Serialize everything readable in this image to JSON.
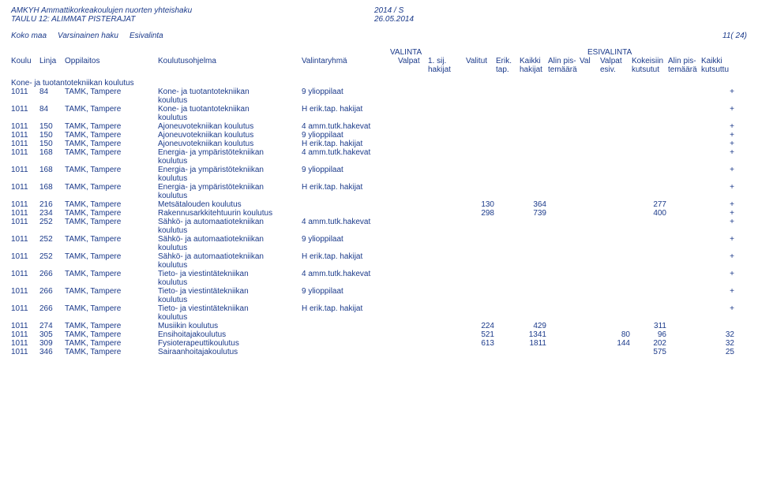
{
  "header": {
    "title1": "AMKYH Ammattikorkeakoulujen nuorten yhteishaku",
    "title2": "TAULU 12: ALIMMAT PISTERAJAT",
    "period": "2014 / S",
    "date": "26.05.2014"
  },
  "bar": {
    "scope": "Koko maa",
    "haku": "Varsinainen haku",
    "phase": "Esivalinta",
    "page": "11( 24)"
  },
  "super_headers": {
    "valinta": "VALINTA",
    "esivalinta": "ESIVALINTA"
  },
  "columns": {
    "koulu": "Koulu",
    "linja": "Linja",
    "oppilaitos": "Oppilaitos",
    "koulutusohjelma": "Koulutusohjelma",
    "valintaryhma": "Valintaryhmä",
    "valpat": "Valpat",
    "sij1": "1. sij.\nhakijat",
    "valitut": "Valitut",
    "erik": "Erik.\ntap.",
    "kaikki_hak": "Kaikki\nhakijat",
    "alinpis_v": "Alin pis-\ntemäärä",
    "val": "Val",
    "valpat_esiv": "Valpat\nesiv.",
    "kokeisiin": "Kokeisiin\nkutsutut",
    "alinpis_e": "Alin pis-\ntemäärä",
    "kaikki_kut": "Kaikki\nkutsuttu"
  },
  "section": "Kone- ja tuotantotekniikan\nkoulutus",
  "rows": [
    {
      "koulu": "1011",
      "linja": "84",
      "opp": "TAMK, Tampere",
      "ohjelma": "Kone- ja tuotantotekniikan\nkoulutus",
      "ryhma": "9 ylioppilaat",
      "plus": "+"
    },
    {
      "koulu": "1011",
      "linja": "84",
      "opp": "TAMK, Tampere",
      "ohjelma": "Kone- ja tuotantotekniikan\nkoulutus",
      "ryhma": "H erik.tap. hakijat",
      "plus": "+"
    },
    {
      "koulu": "1011",
      "linja": "150",
      "opp": "TAMK, Tampere",
      "ohjelma": "Ajoneuvotekniikan koulutus",
      "ryhma": "4 amm.tutk.hakevat",
      "plus": "+"
    },
    {
      "koulu": "1011",
      "linja": "150",
      "opp": "TAMK, Tampere",
      "ohjelma": "Ajoneuvotekniikan koulutus",
      "ryhma": "9 ylioppilaat",
      "plus": "+"
    },
    {
      "koulu": "1011",
      "linja": "150",
      "opp": "TAMK, Tampere",
      "ohjelma": "Ajoneuvotekniikan koulutus",
      "ryhma": "H erik.tap. hakijat",
      "plus": "+"
    },
    {
      "koulu": "1011",
      "linja": "168",
      "opp": "TAMK, Tampere",
      "ohjelma": "Energia- ja ympäristötekniikan\nkoulutus",
      "ryhma": "4 amm.tutk.hakevat",
      "plus": "+"
    },
    {
      "koulu": "1011",
      "linja": "168",
      "opp": "TAMK, Tampere",
      "ohjelma": "Energia- ja ympäristötekniikan\nkoulutus",
      "ryhma": "9 ylioppilaat",
      "plus": "+"
    },
    {
      "koulu": "1011",
      "linja": "168",
      "opp": "TAMK, Tampere",
      "ohjelma": "Energia- ja ympäristötekniikan\nkoulutus",
      "ryhma": "H erik.tap. hakijat",
      "plus": "+"
    },
    {
      "koulu": "1011",
      "linja": "216",
      "opp": "TAMK, Tampere",
      "ohjelma": "Metsätalouden koulutus",
      "ryhma": "",
      "valitut": "130",
      "kaikkihak": "364",
      "kokeisiin": "277",
      "plus": "+"
    },
    {
      "koulu": "1011",
      "linja": "234",
      "opp": "TAMK, Tampere",
      "ohjelma": "Rakennusarkkitehtuurin koulutus",
      "ryhma": "",
      "valitut": "298",
      "kaikkihak": "739",
      "kokeisiin": "400",
      "plus": "+"
    },
    {
      "koulu": "1011",
      "linja": "252",
      "opp": "TAMK, Tampere",
      "ohjelma": "Sähkö- ja automaatiotekniikan\nkoulutus",
      "ryhma": "4 amm.tutk.hakevat",
      "plus": "+"
    },
    {
      "koulu": "1011",
      "linja": "252",
      "opp": "TAMK, Tampere",
      "ohjelma": "Sähkö- ja automaatiotekniikan\nkoulutus",
      "ryhma": "9 ylioppilaat",
      "plus": "+"
    },
    {
      "koulu": "1011",
      "linja": "252",
      "opp": "TAMK, Tampere",
      "ohjelma": "Sähkö- ja automaatiotekniikan\nkoulutus",
      "ryhma": "H erik.tap. hakijat",
      "plus": "+"
    },
    {
      "koulu": "1011",
      "linja": "266",
      "opp": "TAMK, Tampere",
      "ohjelma": "Tieto- ja viestintätekniikan\nkoulutus",
      "ryhma": "4 amm.tutk.hakevat",
      "plus": "+"
    },
    {
      "koulu": "1011",
      "linja": "266",
      "opp": "TAMK, Tampere",
      "ohjelma": "Tieto- ja viestintätekniikan\nkoulutus",
      "ryhma": "9 ylioppilaat",
      "plus": "+"
    },
    {
      "koulu": "1011",
      "linja": "266",
      "opp": "TAMK, Tampere",
      "ohjelma": "Tieto- ja viestintätekniikan\nkoulutus",
      "ryhma": "H erik.tap. hakijat",
      "plus": "+"
    },
    {
      "koulu": "1011",
      "linja": "274",
      "opp": "TAMK, Tampere",
      "ohjelma": "Musiikin koulutus",
      "ryhma": "",
      "valitut": "224",
      "kaikkihak": "429",
      "kokeisiin": "311"
    },
    {
      "koulu": "1011",
      "linja": "305",
      "opp": "TAMK, Tampere",
      "ohjelma": "Ensihoitajakoulutus",
      "ryhma": "",
      "valitut": "521",
      "kaikkihak": "1341",
      "valpatesiv": "80",
      "kokeisiin": "96",
      "kaikkikut": "32"
    },
    {
      "koulu": "1011",
      "linja": "309",
      "opp": "TAMK, Tampere",
      "ohjelma": "Fysioterapeuttikoulutus",
      "ryhma": "",
      "valitut": "613",
      "kaikkihak": "1811",
      "valpatesiv": "144",
      "kokeisiin": "202",
      "kaikkikut": "32"
    },
    {
      "koulu": "1011",
      "linja": "346",
      "opp": "TAMK, Tampere",
      "ohjelma": "Sairaanhoitajakoulutus",
      "ryhma": "",
      "kokeisiin": "575",
      "kaikkikut": "25"
    }
  ]
}
